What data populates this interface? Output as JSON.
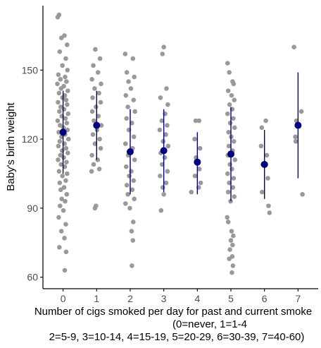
{
  "chart_data": {
    "type": "scatter",
    "title": "",
    "ylabel": "Baby's birth weight",
    "xlabel_lines": [
      "Number of cigs smoked per day for past and current smoke",
      "(0=never, 1=1-4",
      "2=5-9, 3=10-14, 4=15-19, 5=20-29, 6=30-39, 7=40-60)"
    ],
    "x_ticks": [
      0,
      1,
      2,
      3,
      4,
      5,
      6,
      7
    ],
    "y_ticks": [
      60,
      90,
      120,
      150
    ],
    "ylim": [
      55,
      178
    ],
    "xlim": [
      -0.6,
      7.6
    ],
    "grid": false,
    "colors": {
      "points": "#999999",
      "summary": "#00007f",
      "axis": "#000000"
    },
    "summary": [
      {
        "x": 0,
        "mean": 123,
        "low": 105,
        "high": 141
      },
      {
        "x": 1,
        "mean": 126,
        "low": 111,
        "high": 141
      },
      {
        "x": 2,
        "mean": 114.5,
        "low": 96,
        "high": 133
      },
      {
        "x": 3,
        "mean": 115,
        "low": 97,
        "high": 133
      },
      {
        "x": 4,
        "mean": 110,
        "low": 96,
        "high": 123
      },
      {
        "x": 5,
        "mean": 113.5,
        "low": 93,
        "high": 134
      },
      {
        "x": 6,
        "mean": 109,
        "low": 94,
        "high": 124
      },
      {
        "x": 7,
        "mean": 126,
        "low": 103,
        "high": 149
      }
    ],
    "points": [
      {
        "x": -0.12,
        "y": 174
      },
      {
        "x": -0.16,
        "y": 173
      },
      {
        "x": 0.04,
        "y": 165
      },
      {
        "x": -0.05,
        "y": 164
      },
      {
        "x": 0.12,
        "y": 161
      },
      {
        "x": -0.1,
        "y": 158
      },
      {
        "x": 0.08,
        "y": 155
      },
      {
        "x": -0.02,
        "y": 152
      },
      {
        "x": 0.13,
        "y": 150
      },
      {
        "x": -0.14,
        "y": 148
      },
      {
        "x": 0.06,
        "y": 147
      },
      {
        "x": -0.08,
        "y": 146
      },
      {
        "x": 0.1,
        "y": 145
      },
      {
        "x": -0.17,
        "y": 144
      },
      {
        "x": 0.02,
        "y": 143
      },
      {
        "x": -0.06,
        "y": 142
      },
      {
        "x": 0.14,
        "y": 141
      },
      {
        "x": -0.12,
        "y": 140
      },
      {
        "x": 0.05,
        "y": 139
      },
      {
        "x": -0.02,
        "y": 138
      },
      {
        "x": 0.09,
        "y": 137
      },
      {
        "x": -0.15,
        "y": 136
      },
      {
        "x": 0.12,
        "y": 135
      },
      {
        "x": -0.07,
        "y": 134
      },
      {
        "x": 0.03,
        "y": 133
      },
      {
        "x": -0.11,
        "y": 132
      },
      {
        "x": 0.15,
        "y": 131
      },
      {
        "x": -0.04,
        "y": 130
      },
      {
        "x": 0.07,
        "y": 129
      },
      {
        "x": -0.16,
        "y": 128
      },
      {
        "x": 0.11,
        "y": 127
      },
      {
        "x": -0.09,
        "y": 126
      },
      {
        "x": 0.01,
        "y": 125
      },
      {
        "x": 0.13,
        "y": 124
      },
      {
        "x": -0.13,
        "y": 123
      },
      {
        "x": 0.06,
        "y": 122
      },
      {
        "x": -0.05,
        "y": 121
      },
      {
        "x": 0.16,
        "y": 120
      },
      {
        "x": -0.1,
        "y": 119
      },
      {
        "x": 0.04,
        "y": 118
      },
      {
        "x": -0.14,
        "y": 117
      },
      {
        "x": 0.09,
        "y": 116
      },
      {
        "x": -0.03,
        "y": 115
      },
      {
        "x": 0.14,
        "y": 114
      },
      {
        "x": -0.08,
        "y": 113
      },
      {
        "x": 0.02,
        "y": 112
      },
      {
        "x": -0.15,
        "y": 111
      },
      {
        "x": 0.1,
        "y": 110
      },
      {
        "x": -0.06,
        "y": 109
      },
      {
        "x": 0.05,
        "y": 108
      },
      {
        "x": -0.12,
        "y": 106
      },
      {
        "x": 0.12,
        "y": 105
      },
      {
        "x": -0.02,
        "y": 104
      },
      {
        "x": 0.08,
        "y": 102
      },
      {
        "x": -0.1,
        "y": 101
      },
      {
        "x": 0.03,
        "y": 99
      },
      {
        "x": -0.07,
        "y": 98
      },
      {
        "x": 0.11,
        "y": 96
      },
      {
        "x": -0.04,
        "y": 94
      },
      {
        "x": 0.06,
        "y": 93
      },
      {
        "x": -0.09,
        "y": 91
      },
      {
        "x": 0.01,
        "y": 89
      },
      {
        "x": -0.13,
        "y": 86
      },
      {
        "x": 0.08,
        "y": 83
      },
      {
        "x": -0.05,
        "y": 80
      },
      {
        "x": 0.04,
        "y": 77
      },
      {
        "x": -0.11,
        "y": 73
      },
      {
        "x": 0.09,
        "y": 71
      },
      {
        "x": 0.05,
        "y": 63
      },
      {
        "x": 0.96,
        "y": 159
      },
      {
        "x": 1.1,
        "y": 155
      },
      {
        "x": 0.9,
        "y": 152
      },
      {
        "x": 1.04,
        "y": 149
      },
      {
        "x": 0.86,
        "y": 146
      },
      {
        "x": 1.13,
        "y": 144
      },
      {
        "x": 0.94,
        "y": 142
      },
      {
        "x": 1.07,
        "y": 140
      },
      {
        "x": 0.88,
        "y": 138
      },
      {
        "x": 1.12,
        "y": 136
      },
      {
        "x": 0.98,
        "y": 134
      },
      {
        "x": 0.87,
        "y": 132
      },
      {
        "x": 1.05,
        "y": 130
      },
      {
        "x": 0.92,
        "y": 128
      },
      {
        "x": 1.14,
        "y": 126
      },
      {
        "x": 1.01,
        "y": 124
      },
      {
        "x": 0.89,
        "y": 122
      },
      {
        "x": 1.09,
        "y": 120
      },
      {
        "x": 0.95,
        "y": 118
      },
      {
        "x": 1.12,
        "y": 116
      },
      {
        "x": 0.86,
        "y": 113
      },
      {
        "x": 1.03,
        "y": 111
      },
      {
        "x": 0.91,
        "y": 109
      },
      {
        "x": 1.08,
        "y": 107
      },
      {
        "x": 0.85,
        "y": 106
      },
      {
        "x": 0.98,
        "y": 91
      },
      {
        "x": 0.95,
        "y": 90
      },
      {
        "x": 1.85,
        "y": 157
      },
      {
        "x": 2.08,
        "y": 155
      },
      {
        "x": 1.9,
        "y": 149
      },
      {
        "x": 2.12,
        "y": 147
      },
      {
        "x": 1.95,
        "y": 145
      },
      {
        "x": 2.02,
        "y": 142
      },
      {
        "x": 1.87,
        "y": 139
      },
      {
        "x": 2.1,
        "y": 137
      },
      {
        "x": 1.93,
        "y": 134
      },
      {
        "x": 2.14,
        "y": 132
      },
      {
        "x": 1.89,
        "y": 129
      },
      {
        "x": 2.05,
        "y": 127
      },
      {
        "x": 1.96,
        "y": 124
      },
      {
        "x": 2.11,
        "y": 121
      },
      {
        "x": 1.86,
        "y": 118
      },
      {
        "x": 2.07,
        "y": 116
      },
      {
        "x": 1.94,
        "y": 113
      },
      {
        "x": 2.13,
        "y": 111
      },
      {
        "x": 1.88,
        "y": 108
      },
      {
        "x": 2.03,
        "y": 106
      },
      {
        "x": 1.97,
        "y": 104
      },
      {
        "x": 2.1,
        "y": 102
      },
      {
        "x": 1.9,
        "y": 100
      },
      {
        "x": 2.06,
        "y": 98
      },
      {
        "x": 1.93,
        "y": 96
      },
      {
        "x": 2.12,
        "y": 94
      },
      {
        "x": 1.86,
        "y": 92
      },
      {
        "x": 1.99,
        "y": 90
      },
      {
        "x": 2.09,
        "y": 84
      },
      {
        "x": 2.04,
        "y": 80
      },
      {
        "x": 2.08,
        "y": 76
      },
      {
        "x": 2.05,
        "y": 65
      },
      {
        "x": 3.0,
        "y": 160
      },
      {
        "x": 2.96,
        "y": 157
      },
      {
        "x": 3.08,
        "y": 142
      },
      {
        "x": 2.9,
        "y": 138
      },
      {
        "x": 3.12,
        "y": 135
      },
      {
        "x": 3.04,
        "y": 131
      },
      {
        "x": 2.94,
        "y": 128
      },
      {
        "x": 3.1,
        "y": 126
      },
      {
        "x": 2.88,
        "y": 124
      },
      {
        "x": 3.06,
        "y": 122
      },
      {
        "x": 2.98,
        "y": 119
      },
      {
        "x": 3.13,
        "y": 117
      },
      {
        "x": 2.91,
        "y": 114
      },
      {
        "x": 3.03,
        "y": 112
      },
      {
        "x": 2.95,
        "y": 109
      },
      {
        "x": 3.11,
        "y": 106
      },
      {
        "x": 2.89,
        "y": 104
      },
      {
        "x": 3.07,
        "y": 101
      },
      {
        "x": 2.97,
        "y": 99
      },
      {
        "x": 3.0,
        "y": 96
      },
      {
        "x": 2.92,
        "y": 89
      },
      {
        "x": 3.95,
        "y": 128
      },
      {
        "x": 4.05,
        "y": 128
      },
      {
        "x": 3.92,
        "y": 120
      },
      {
        "x": 4.08,
        "y": 116
      },
      {
        "x": 3.96,
        "y": 112
      },
      {
        "x": 4.06,
        "y": 107
      },
      {
        "x": 3.93,
        "y": 104
      },
      {
        "x": 4.1,
        "y": 101
      },
      {
        "x": 4.04,
        "y": 99
      },
      {
        "x": 3.82,
        "y": 97
      },
      {
        "x": 4.9,
        "y": 153
      },
      {
        "x": 4.95,
        "y": 149
      },
      {
        "x": 5.05,
        "y": 145
      },
      {
        "x": 5.08,
        "y": 144
      },
      {
        "x": 4.92,
        "y": 141
      },
      {
        "x": 5.02,
        "y": 139
      },
      {
        "x": 5.1,
        "y": 137
      },
      {
        "x": 4.96,
        "y": 135
      },
      {
        "x": 5.04,
        "y": 133
      },
      {
        "x": 4.9,
        "y": 131
      },
      {
        "x": 5.07,
        "y": 129
      },
      {
        "x": 4.98,
        "y": 127
      },
      {
        "x": 5.11,
        "y": 125
      },
      {
        "x": 4.93,
        "y": 123
      },
      {
        "x": 5.01,
        "y": 121
      },
      {
        "x": 5.09,
        "y": 119
      },
      {
        "x": 4.94,
        "y": 117
      },
      {
        "x": 5.05,
        "y": 115
      },
      {
        "x": 4.91,
        "y": 113
      },
      {
        "x": 5.12,
        "y": 111
      },
      {
        "x": 4.97,
        "y": 109
      },
      {
        "x": 5.03,
        "y": 107
      },
      {
        "x": 4.9,
        "y": 105
      },
      {
        "x": 5.08,
        "y": 103
      },
      {
        "x": 4.95,
        "y": 101
      },
      {
        "x": 5.06,
        "y": 99
      },
      {
        "x": 4.92,
        "y": 97
      },
      {
        "x": 5.1,
        "y": 95
      },
      {
        "x": 4.99,
        "y": 93
      },
      {
        "x": 4.89,
        "y": 86
      },
      {
        "x": 4.92,
        "y": 84
      },
      {
        "x": 5.02,
        "y": 80
      },
      {
        "x": 5.07,
        "y": 78
      },
      {
        "x": 5.0,
        "y": 76
      },
      {
        "x": 5.05,
        "y": 74
      },
      {
        "x": 4.97,
        "y": 72
      },
      {
        "x": 5.04,
        "y": 69
      },
      {
        "x": 4.95,
        "y": 68
      },
      {
        "x": 5.06,
        "y": 65
      },
      {
        "x": 5.03,
        "y": 62
      },
      {
        "x": 6.04,
        "y": 128
      },
      {
        "x": 5.92,
        "y": 125
      },
      {
        "x": 5.9,
        "y": 117
      },
      {
        "x": 6.07,
        "y": 113
      },
      {
        "x": 5.95,
        "y": 109
      },
      {
        "x": 6.1,
        "y": 103
      },
      {
        "x": 5.93,
        "y": 97
      },
      {
        "x": 6.12,
        "y": 91
      },
      {
        "x": 6.15,
        "y": 88
      },
      {
        "x": 6.88,
        "y": 160
      },
      {
        "x": 7.1,
        "y": 132
      },
      {
        "x": 6.95,
        "y": 128
      },
      {
        "x": 6.92,
        "y": 121
      },
      {
        "x": 6.93,
        "y": 119
      },
      {
        "x": 7.13,
        "y": 96
      }
    ]
  }
}
